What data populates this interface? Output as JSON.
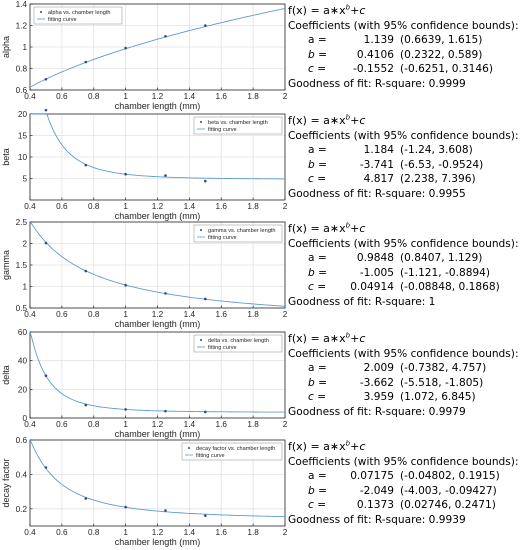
{
  "chart_data": [
    {
      "type": "line",
      "ylabel": "alpha",
      "xlabel": "chamber length (mm)",
      "xlim": [
        0.4,
        2
      ],
      "ylim": [
        0.6,
        1.4
      ],
      "xticks": [
        "0.4",
        "0.6",
        "0.8",
        "1",
        "1.2",
        "1.4",
        "1.6",
        "1.8",
        "2"
      ],
      "yticks": [
        "0.6",
        "0.8",
        "1",
        "1.2",
        "1.4"
      ],
      "grid": true,
      "legend": [
        "alpha vs. chamber length",
        "fitting curve"
      ],
      "legend_position": "top-left",
      "points": {
        "x": [
          0.5,
          0.75,
          1.0,
          1.25,
          1.5
        ],
        "y": [
          0.7,
          0.86,
          0.99,
          1.1,
          1.2
        ]
      },
      "fit": {
        "a": 1.139,
        "b": 0.4106,
        "c": -0.1552
      },
      "fit_text": {
        "equation": "f(x) = a∗x",
        "equation_exp": "b",
        "equation_tail": "+c",
        "heading": "Coefficients (with 95% confidence bounds):",
        "coefficients": [
          {
            "name": "a =",
            "value": "1.139",
            "bounds": "(0.6639, 1.615)"
          },
          {
            "name": "b =",
            "value": "0.4106",
            "bounds": "(0.2322, 0.589)"
          },
          {
            "name": "c =",
            "value": "-0.1552",
            "bounds": "(-0.6251, 0.3146)"
          }
        ],
        "goodness": "Goodness of fit: R-square: 0.9999"
      }
    },
    {
      "type": "line",
      "ylabel": "beta",
      "xlabel": "chamber length (mm)",
      "xlim": [
        0.4,
        2
      ],
      "ylim": [
        0,
        20
      ],
      "xticks": [
        "0.4",
        "0.6",
        "0.8",
        "1",
        "1.2",
        "1.4",
        "1.6",
        "1.8",
        "2"
      ],
      "yticks": [
        "5",
        "10",
        "15",
        "20"
      ],
      "grid": true,
      "legend": [
        "beta vs. chamber length",
        "fitting curve"
      ],
      "legend_position": "top-right",
      "points": {
        "x": [
          0.5,
          0.75,
          1.0,
          1.25,
          1.5
        ],
        "y": [
          20.9,
          8.1,
          6.0,
          5.7,
          4.4
        ]
      },
      "fit": {
        "a": 1.184,
        "b": -3.741,
        "c": 4.817
      },
      "fit_text": {
        "equation": "f(x) = a∗x",
        "equation_exp": "b",
        "equation_tail": "+c",
        "heading": "Coefficients (with 95% confidence bounds):",
        "coefficients": [
          {
            "name": "a =",
            "value": "1.184",
            "bounds": "(-1.24, 3.608)"
          },
          {
            "name": "b =",
            "value": "-3.741",
            "bounds": "(-6.53, -0.9524)"
          },
          {
            "name": "c =",
            "value": "4.817",
            "bounds": "(2.238, 7.396)"
          }
        ],
        "goodness": "Goodness of fit: R-square: 0.9955"
      }
    },
    {
      "type": "line",
      "ylabel": "gamma",
      "xlabel": "chamber length (mm)",
      "xlim": [
        0.4,
        2
      ],
      "ylim": [
        0.5,
        2.5
      ],
      "xticks": [
        "0.4",
        "0.6",
        "0.8",
        "1",
        "1.2",
        "1.4",
        "1.6",
        "1.8",
        "2"
      ],
      "yticks": [
        "0.5",
        "1",
        "1.5",
        "2",
        "2.5"
      ],
      "grid": true,
      "legend": [
        "gamma vs. chamber length",
        "fitting curve"
      ],
      "legend_position": "top-right",
      "points": {
        "x": [
          0.5,
          0.75,
          1.0,
          1.25,
          1.5
        ],
        "y": [
          2.01,
          1.36,
          1.03,
          0.84,
          0.71
        ]
      },
      "fit": {
        "a": 0.9848,
        "b": -1.005,
        "c": 0.04914
      },
      "fit_text": {
        "equation": "f(x) = a∗x",
        "equation_exp": "b",
        "equation_tail": "+c",
        "heading": "Coefficients (with 95% confidence bounds):",
        "coefficients": [
          {
            "name": "a =",
            "value": "0.9848",
            "bounds": "(0.8407, 1.129)"
          },
          {
            "name": "b =",
            "value": "-1.005",
            "bounds": "(-1.121, -0.8894)"
          },
          {
            "name": "c =",
            "value": "0.04914",
            "bounds": "(-0.08848, 0.1868)"
          }
        ],
        "goodness": "Goodness of fit: R-square: 1"
      }
    },
    {
      "type": "line",
      "ylabel": "delta",
      "xlabel": "chamber length (mm)",
      "xlim": [
        0.4,
        2
      ],
      "ylim": [
        0,
        60
      ],
      "xticks": [
        "0.4",
        "0.6",
        "0.8",
        "1",
        "1.2",
        "1.4",
        "1.6",
        "1.8",
        "2"
      ],
      "yticks": [
        "0",
        "20",
        "40",
        "60"
      ],
      "grid": true,
      "legend": [
        "delta vs. chamber length",
        "fitting curve"
      ],
      "legend_position": "top-right",
      "points": {
        "x": [
          0.5,
          0.75,
          1.0,
          1.25,
          1.5
        ],
        "y": [
          29.5,
          9.0,
          6.0,
          4.8,
          4.2
        ]
      },
      "fit": {
        "a": 2.009,
        "b": -3.662,
        "c": 3.959
      },
      "fit_text": {
        "equation": "f(x) = a∗x",
        "equation_exp": "b",
        "equation_tail": "+c",
        "heading": "Coefficients (with 95% confidence bounds):",
        "coefficients": [
          {
            "name": "a =",
            "value": "2.009",
            "bounds": "(-0.7382, 4.757)"
          },
          {
            "name": "b =",
            "value": "-3.662",
            "bounds": "(-5.518, -1.805)"
          },
          {
            "name": "c =",
            "value": "3.959",
            "bounds": "(1.072, 6.845)"
          }
        ],
        "goodness": "Goodness of fit: R-square: 0.9979"
      }
    },
    {
      "type": "line",
      "ylabel": "decay factor",
      "xlabel": "chamber length (mm)",
      "xlim": [
        0.4,
        2
      ],
      "ylim": [
        0.1,
        0.6
      ],
      "xticks": [
        "0.4",
        "0.6",
        "0.8",
        "1",
        "1.2",
        "1.4",
        "1.6",
        "1.8",
        "2"
      ],
      "yticks": [
        "0.2",
        "0.4",
        "0.6"
      ],
      "grid": true,
      "legend": [
        "decay factor vs. chamber length",
        "fitting curve"
      ],
      "legend_position": "top-right",
      "points": {
        "x": [
          0.5,
          0.75,
          1.0,
          1.25,
          1.5
        ],
        "y": [
          0.44,
          0.26,
          0.21,
          0.19,
          0.16
        ]
      },
      "fit": {
        "a": 0.07175,
        "b": -2.049,
        "c": 0.1373
      },
      "fit_text": {
        "equation": "f(x) = a∗x",
        "equation_exp": "b",
        "equation_tail": "+c",
        "heading": "Coefficients (with 95% confidence bounds):",
        "coefficients": [
          {
            "name": "a =",
            "value": "0.07175",
            "bounds": "(-0.04802, 0.1915)"
          },
          {
            "name": "b =",
            "value": "-2.049",
            "bounds": "(-4.003, -0.09427)"
          },
          {
            "name": "c =",
            "value": "0.1373",
            "bounds": "(0.02746, 0.2471)"
          }
        ],
        "goodness": "Goodness of fit: R-square: 0.9939"
      }
    }
  ],
  "colors": {
    "fit_line": "#5e9bd1",
    "marker": "#2c4f7a",
    "grid": "#e2e2e2",
    "axis": "#262626",
    "text": "#262626"
  }
}
